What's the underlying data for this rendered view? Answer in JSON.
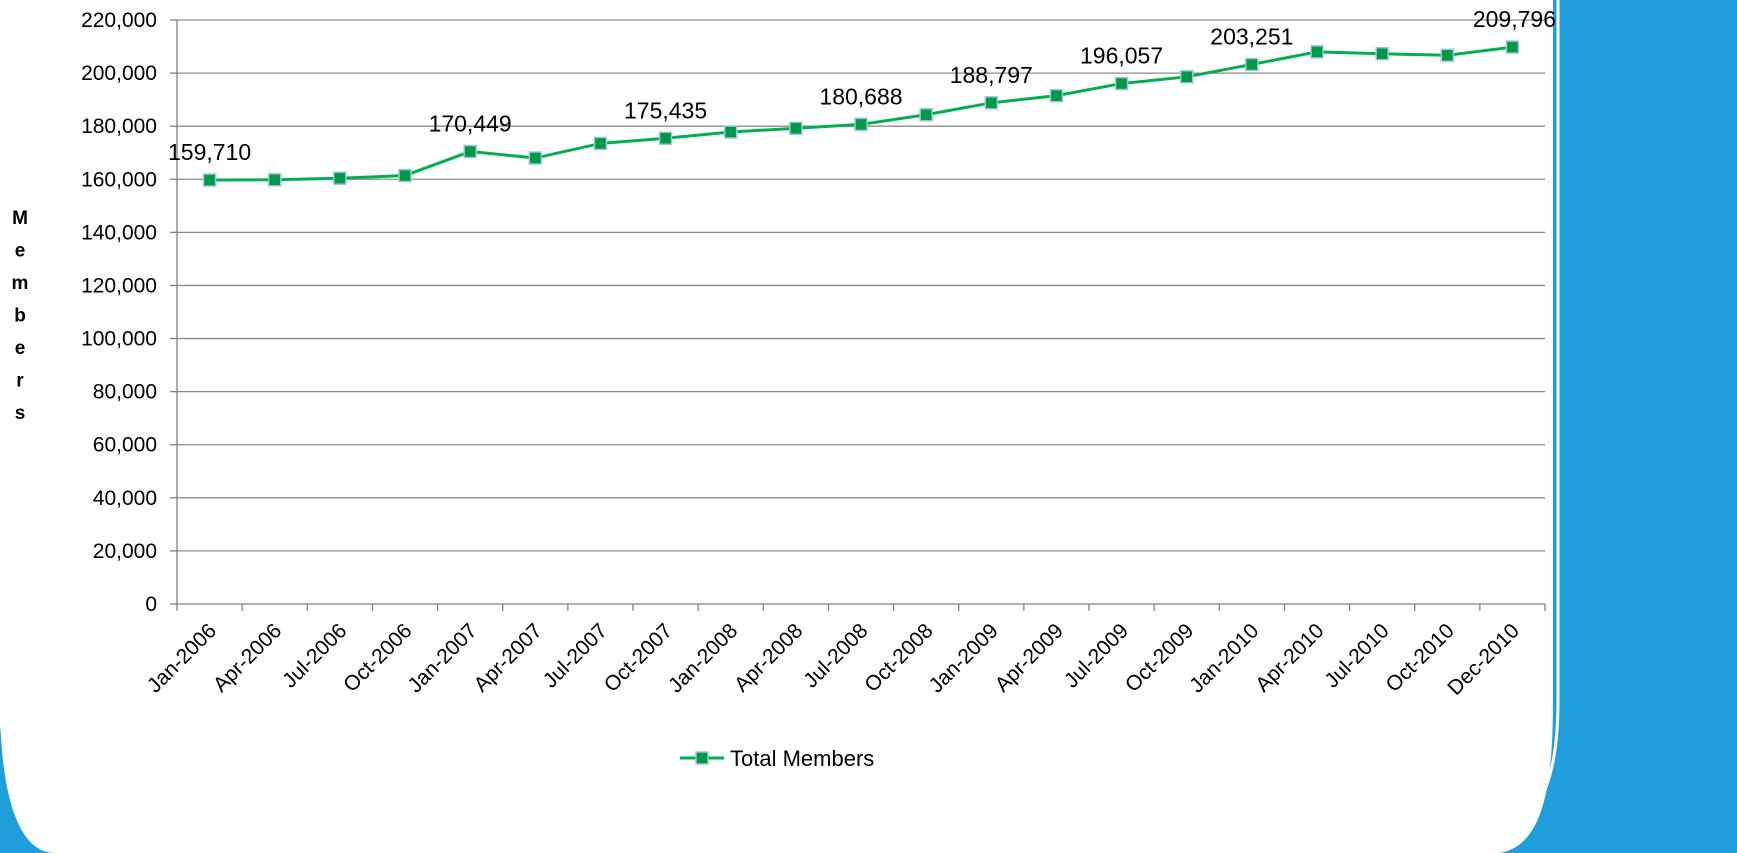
{
  "chart_data": {
    "type": "line",
    "title": "",
    "ylabel": "Members",
    "xlabel": "",
    "ylim": [
      0,
      220000
    ],
    "ytick_values": [
      0,
      20000,
      40000,
      60000,
      80000,
      100000,
      120000,
      140000,
      160000,
      180000,
      200000,
      220000
    ],
    "ytick_labels": [
      "0",
      "20,000",
      "40,000",
      "60,000",
      "80,000",
      "100,000",
      "120,000",
      "140,000",
      "160,000",
      "180,000",
      "200,000",
      "220,000"
    ],
    "categories": [
      "Jan-2006",
      "Apr-2006",
      "Jul-2006",
      "Oct-2006",
      "Jan-2007",
      "Apr-2007",
      "Jul-2007",
      "Oct-2007",
      "Jan-2008",
      "Apr-2008",
      "Jul-2008",
      "Oct-2008",
      "Jan-2009",
      "Apr-2009",
      "Jul-2009",
      "Oct-2009",
      "Jan-2010",
      "Apr-2010",
      "Jul-2010",
      "Oct-2010",
      "Dec-2010"
    ],
    "grid": true,
    "legend_position": "bottom",
    "series": [
      {
        "name": "Total Members",
        "color": "#00b050",
        "marker_color": "#009a46",
        "marker_edge": "#9dc3e6",
        "values": [
          159710,
          159800,
          160400,
          161400,
          170449,
          168000,
          173500,
          175435,
          177800,
          179200,
          180688,
          184300,
          188797,
          191500,
          196057,
          198600,
          203251,
          208000,
          207300,
          206700,
          209796
        ]
      }
    ],
    "data_labels": [
      {
        "index": 0,
        "text": "159,710"
      },
      {
        "index": 4,
        "text": "170,449"
      },
      {
        "index": 7,
        "text": "175,435"
      },
      {
        "index": 10,
        "text": "180,688"
      },
      {
        "index": 12,
        "text": "188,797"
      },
      {
        "index": 14,
        "text": "196,057"
      },
      {
        "index": 16,
        "text": "203,251"
      },
      {
        "index": 20,
        "text": "209,796"
      }
    ]
  },
  "theme": {
    "frame_color": "#1e9fdc",
    "grid_color": "#8c8c8c",
    "axis_color": "#808080"
  }
}
